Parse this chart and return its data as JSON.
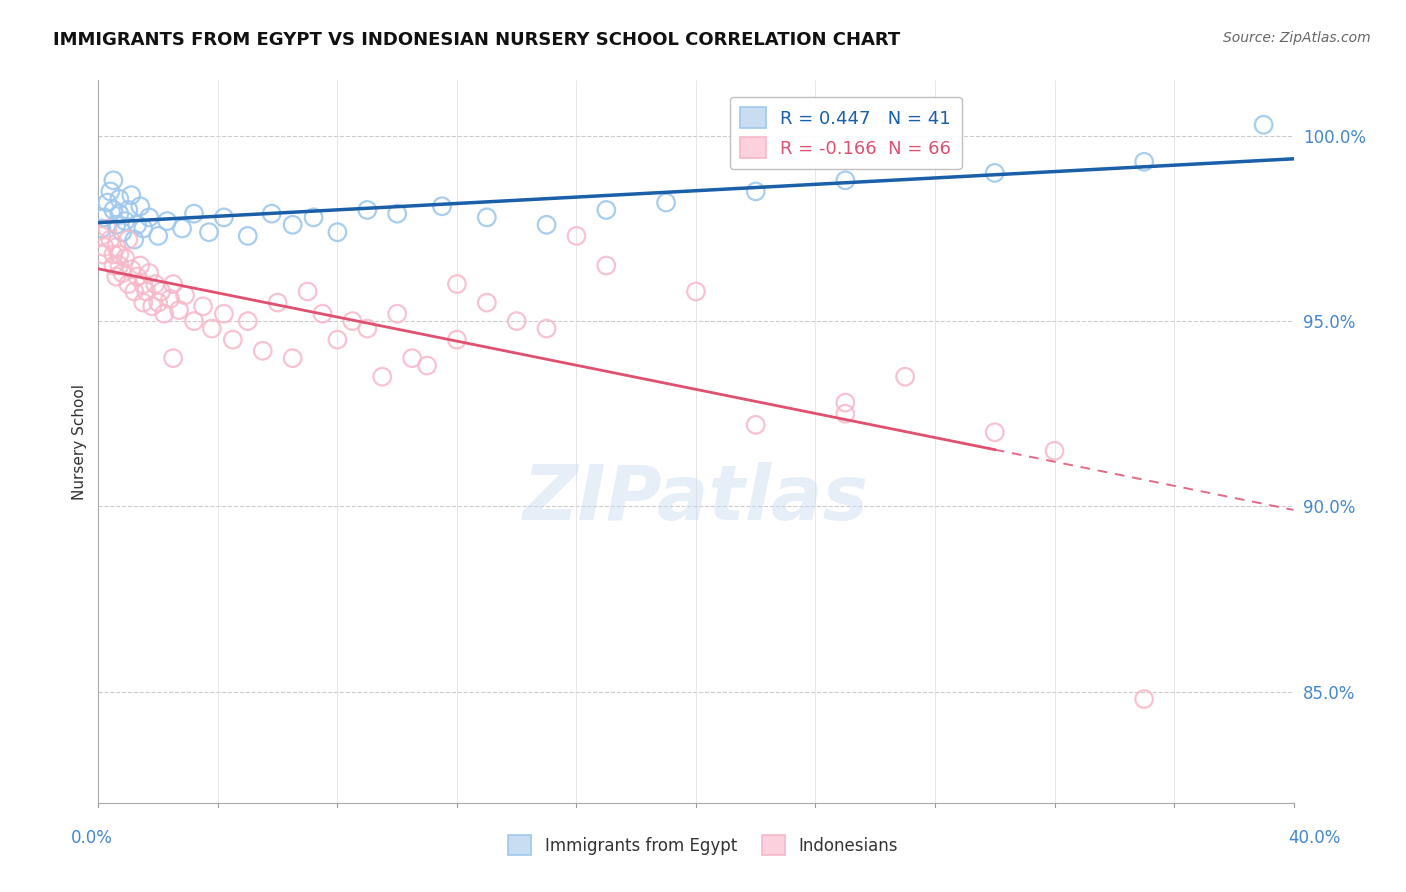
{
  "title": "IMMIGRANTS FROM EGYPT VS INDONESIAN NURSERY SCHOOL CORRELATION CHART",
  "source": "Source: ZipAtlas.com",
  "ylabel": "Nursery School",
  "xlim": [
    0.0,
    40.0
  ],
  "ylim": [
    82.0,
    101.5
  ],
  "y_ticks": [
    100.0,
    95.0,
    90.0,
    85.0
  ],
  "legend_label_blue": "Immigrants from Egypt",
  "legend_label_pink": "Indonesians",
  "R_blue": 0.447,
  "N_blue": 41,
  "R_pink": -0.166,
  "N_pink": 66,
  "blue_scatter": [
    [
      0.1,
      97.5
    ],
    [
      0.2,
      97.8
    ],
    [
      0.3,
      98.2
    ],
    [
      0.4,
      98.5
    ],
    [
      0.5,
      98.8
    ],
    [
      0.5,
      98.0
    ],
    [
      0.6,
      97.6
    ],
    [
      0.7,
      97.9
    ],
    [
      0.7,
      98.3
    ],
    [
      0.8,
      97.4
    ],
    [
      0.9,
      97.7
    ],
    [
      1.0,
      98.0
    ],
    [
      1.1,
      98.4
    ],
    [
      1.2,
      97.2
    ],
    [
      1.3,
      97.6
    ],
    [
      1.4,
      98.1
    ],
    [
      1.5,
      97.5
    ],
    [
      1.7,
      97.8
    ],
    [
      2.0,
      97.3
    ],
    [
      2.3,
      97.7
    ],
    [
      2.8,
      97.5
    ],
    [
      3.2,
      97.9
    ],
    [
      3.7,
      97.4
    ],
    [
      4.2,
      97.8
    ],
    [
      5.0,
      97.3
    ],
    [
      5.8,
      97.9
    ],
    [
      6.5,
      97.6
    ],
    [
      7.2,
      97.8
    ],
    [
      8.0,
      97.4
    ],
    [
      9.0,
      98.0
    ],
    [
      10.0,
      97.9
    ],
    [
      11.5,
      98.1
    ],
    [
      13.0,
      97.8
    ],
    [
      15.0,
      97.6
    ],
    [
      17.0,
      98.0
    ],
    [
      19.0,
      98.2
    ],
    [
      22.0,
      98.5
    ],
    [
      25.0,
      98.8
    ],
    [
      30.0,
      99.0
    ],
    [
      35.0,
      99.3
    ],
    [
      39.0,
      100.3
    ]
  ],
  "pink_scatter": [
    [
      0.1,
      97.3
    ],
    [
      0.2,
      97.0
    ],
    [
      0.3,
      97.5
    ],
    [
      0.4,
      97.2
    ],
    [
      0.5,
      96.8
    ],
    [
      0.5,
      96.5
    ],
    [
      0.6,
      97.0
    ],
    [
      0.6,
      96.2
    ],
    [
      0.7,
      96.5
    ],
    [
      0.7,
      96.8
    ],
    [
      0.8,
      96.3
    ],
    [
      0.9,
      96.7
    ],
    [
      1.0,
      96.0
    ],
    [
      1.0,
      97.2
    ],
    [
      1.1,
      96.4
    ],
    [
      1.2,
      95.8
    ],
    [
      1.3,
      96.2
    ],
    [
      1.4,
      96.5
    ],
    [
      1.5,
      95.5
    ],
    [
      1.5,
      96.0
    ],
    [
      1.6,
      95.8
    ],
    [
      1.7,
      96.3
    ],
    [
      1.8,
      95.4
    ],
    [
      1.9,
      96.0
    ],
    [
      2.0,
      95.5
    ],
    [
      2.1,
      95.8
    ],
    [
      2.2,
      95.2
    ],
    [
      2.4,
      95.6
    ],
    [
      2.5,
      96.0
    ],
    [
      2.7,
      95.3
    ],
    [
      2.9,
      95.7
    ],
    [
      3.2,
      95.0
    ],
    [
      3.5,
      95.4
    ],
    [
      3.8,
      94.8
    ],
    [
      4.2,
      95.2
    ],
    [
      4.5,
      94.5
    ],
    [
      5.0,
      95.0
    ],
    [
      5.5,
      94.2
    ],
    [
      6.0,
      95.5
    ],
    [
      6.5,
      94.0
    ],
    [
      7.0,
      95.8
    ],
    [
      7.5,
      95.2
    ],
    [
      8.0,
      94.5
    ],
    [
      8.5,
      95.0
    ],
    [
      9.0,
      94.8
    ],
    [
      9.5,
      93.5
    ],
    [
      10.0,
      95.2
    ],
    [
      10.5,
      94.0
    ],
    [
      11.0,
      93.8
    ],
    [
      12.0,
      94.5
    ],
    [
      13.0,
      95.5
    ],
    [
      14.0,
      95.0
    ],
    [
      15.0,
      94.8
    ],
    [
      16.0,
      97.3
    ],
    [
      17.0,
      96.5
    ],
    [
      20.0,
      95.8
    ],
    [
      22.0,
      92.2
    ],
    [
      25.0,
      92.8
    ],
    [
      25.0,
      92.5
    ],
    [
      27.0,
      93.5
    ],
    [
      30.0,
      92.0
    ],
    [
      32.0,
      91.5
    ],
    [
      35.0,
      84.8
    ],
    [
      12.0,
      96.0
    ],
    [
      2.5,
      94.0
    ],
    [
      0.15,
      96.8
    ]
  ],
  "blue_color": "#9EC8EE",
  "pink_color": "#F7B8C8",
  "blue_fill_color": "none",
  "pink_fill_color": "none",
  "blue_line_color": "#1A5FA8",
  "pink_line_color": "#E05070",
  "grid_color": "#cccccc",
  "background_color": "#ffffff",
  "title_fontsize": 13,
  "axis_label_color": "#4488cc",
  "tick_label_color": "#4488cc",
  "pink_solid_end_x": 30.0
}
